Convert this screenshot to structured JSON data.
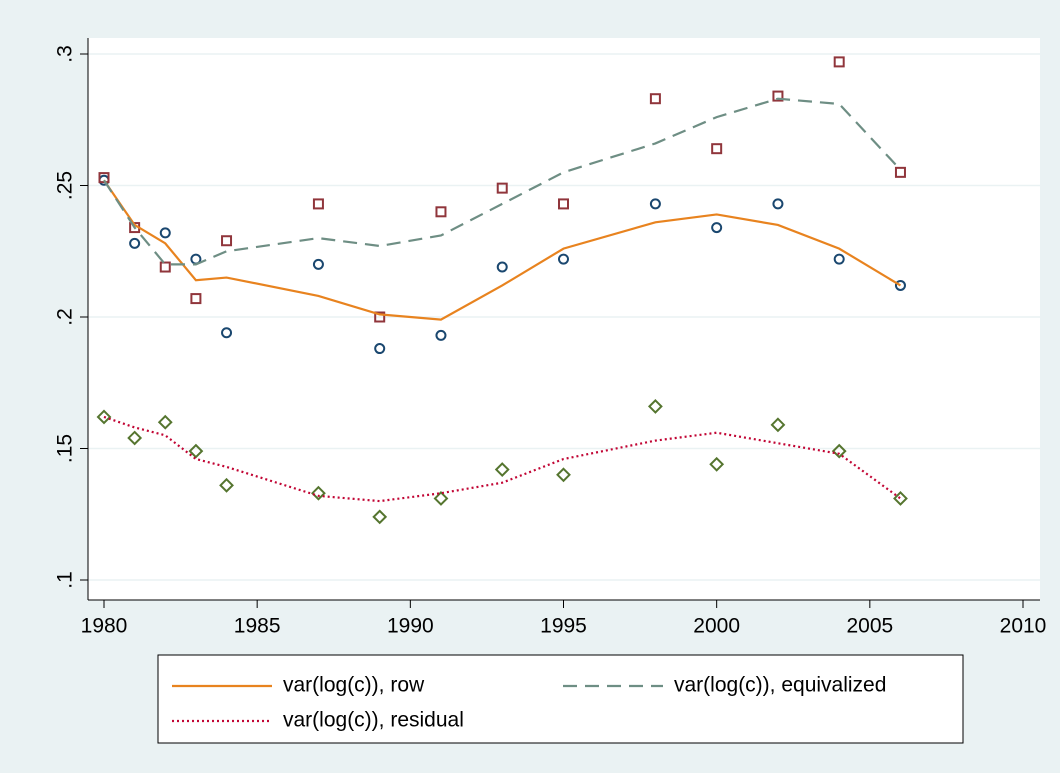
{
  "chart_data": {
    "type": "line",
    "x": [
      1980,
      1981,
      1982,
      1983,
      1984,
      1987,
      1989,
      1991,
      1993,
      1995,
      1998,
      2000,
      2002,
      2004,
      2006
    ],
    "xlim": [
      1980,
      2010
    ],
    "xticks": [
      1980,
      1985,
      1990,
      1995,
      2000,
      2005,
      2010
    ],
    "ylim": [
      0.1,
      0.3
    ],
    "yticks": [
      {
        "value": 0.1,
        "label": ".1"
      },
      {
        "value": 0.15,
        "label": ".15"
      },
      {
        "value": 0.2,
        "label": ".2"
      },
      {
        "value": 0.25,
        "label": ".25"
      },
      {
        "value": 0.3,
        "label": ".3"
      }
    ],
    "grid": true,
    "series": [
      {
        "kind": "scatter",
        "marker": "circle",
        "color": "#1a476f",
        "values": [
          0.252,
          0.228,
          0.232,
          0.222,
          0.194,
          0.22,
          0.188,
          0.193,
          0.219,
          0.222,
          0.243,
          0.234,
          0.243,
          0.222,
          0.212
        ]
      },
      {
        "kind": "scatter",
        "marker": "square",
        "color": "#90353b",
        "values": [
          0.253,
          0.234,
          0.219,
          0.207,
          0.229,
          0.243,
          0.2,
          0.24,
          0.249,
          0.243,
          0.283,
          0.264,
          0.284,
          0.297,
          0.255
        ]
      },
      {
        "kind": "scatter",
        "marker": "diamond",
        "color": "#55752f",
        "values": [
          0.162,
          0.154,
          0.16,
          0.149,
          0.136,
          0.133,
          0.124,
          0.131,
          0.142,
          0.14,
          0.166,
          0.144,
          0.159,
          0.149,
          0.131
        ]
      },
      {
        "kind": "line",
        "dash": "solid",
        "name": "var(log(c)), row",
        "color": "#e8831f",
        "values": [
          0.252,
          0.235,
          0.228,
          0.214,
          0.215,
          0.208,
          0.201,
          0.199,
          0.212,
          0.226,
          0.236,
          0.239,
          0.235,
          0.226,
          0.212
        ]
      },
      {
        "kind": "line",
        "dash": "dash",
        "name": "var(log(c)), equivalized",
        "color": "#6e8e84",
        "values": [
          0.252,
          0.234,
          0.22,
          0.22,
          0.225,
          0.23,
          0.227,
          0.231,
          0.243,
          0.255,
          0.266,
          0.276,
          0.283,
          0.281,
          0.256
        ]
      },
      {
        "kind": "line",
        "dash": "dot",
        "name": "var(log(c)), residual",
        "color": "#c10534",
        "values": [
          0.162,
          0.158,
          0.155,
          0.146,
          0.143,
          0.132,
          0.13,
          0.133,
          0.137,
          0.146,
          0.153,
          0.156,
          0.152,
          0.148,
          0.131
        ]
      }
    ]
  }
}
